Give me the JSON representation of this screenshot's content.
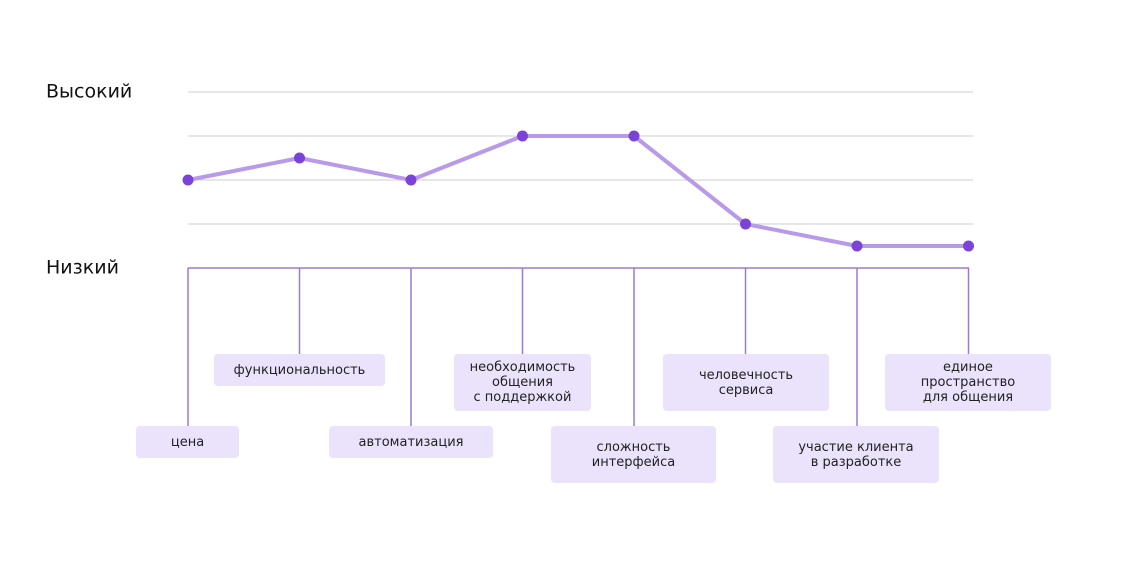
{
  "chart_data": {
    "type": "line",
    "categories": [
      "цена",
      "функциональность",
      "автоматизация",
      "необходимость\nобщения\nс поддержкой",
      "сложность\nинтерфейса",
      "человечность\nсервиса",
      "участие клиента\nв разработке",
      "единое\nпространство\nдля общения"
    ],
    "values": [
      2,
      2.5,
      2,
      3,
      3,
      1,
      0.5,
      0.5
    ],
    "color": "#b99ae9",
    "marker_color": "#7c43d8",
    "ylim": [
      0,
      4
    ],
    "yticks": [
      {
        "value": 0,
        "label": "Низкий"
      },
      {
        "value": 4,
        "label": "Высокий"
      }
    ],
    "ygrid": [
      1,
      2,
      3,
      4
    ]
  }
}
